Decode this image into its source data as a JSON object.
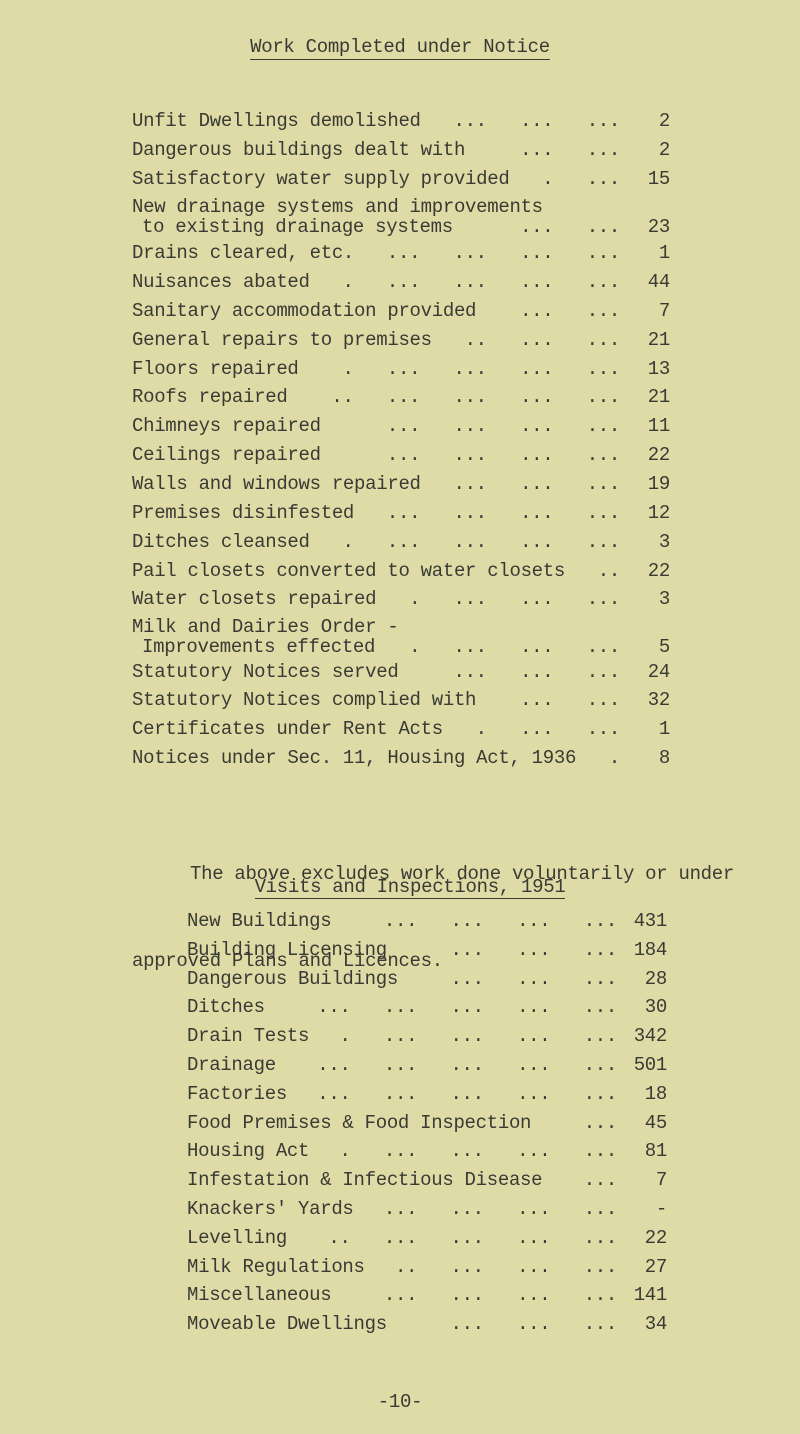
{
  "title": "Work Completed under Notice",
  "work_items": [
    {
      "label": "Unfit Dwellings demolished",
      "dots": "...   ...   ...",
      "value": "2"
    },
    {
      "label": "Dangerous buildings dealt with",
      "dots": "...   ...",
      "value": "2"
    },
    {
      "label": "Satisfactory water supply provided",
      "dots": ".   ...",
      "value": "15"
    },
    {
      "label": "New drainage systems and improvements",
      "label2": "to existing drainage systems",
      "dots": "...   ...",
      "value": "23"
    },
    {
      "label": "Drains cleared, etc.",
      "dots": "...   ...   ...   ...",
      "value": "1"
    },
    {
      "label": "Nuisances abated",
      "dots": ".   ...   ...   ...   ...",
      "value": "44"
    },
    {
      "label": "Sanitary accommodation provided",
      "dots": "...   ...",
      "value": "7"
    },
    {
      "label": "General repairs to premises",
      "dots": "..   ...   ...",
      "value": "21"
    },
    {
      "label": "Floors repaired",
      "dots": ".   ...   ...   ...   ...",
      "value": "13"
    },
    {
      "label": "Roofs repaired",
      "dots": "..   ...   ...   ...   ...",
      "value": "21"
    },
    {
      "label": "Chimneys repaired",
      "dots": "...   ...   ...   ...",
      "value": "11"
    },
    {
      "label": "Ceilings repaired",
      "dots": "...   ...   ...   ...",
      "value": "22"
    },
    {
      "label": "Walls and windows repaired",
      "dots": "...   ...   ...",
      "value": "19"
    },
    {
      "label": "Premises disinfested",
      "dots": "...   ...   ...   ...",
      "value": "12"
    },
    {
      "label": "Ditches cleansed",
      "dots": ".   ...   ...   ...   ...",
      "value": "3"
    },
    {
      "label": "Pail closets converted to water closets",
      "dots": "..",
      "value": "22"
    },
    {
      "label": "Water closets repaired",
      "dots": ".   ...   ...   ...",
      "value": "3"
    },
    {
      "label": "Milk and Dairies Order -",
      "label2": "Improvements effected",
      "dots": ".   ...   ...   ...",
      "value": "5"
    },
    {
      "label": "Statutory Notices served",
      "dots": "...   ...   ...",
      "value": "24"
    },
    {
      "label": "Statutory Notices complied with",
      "dots": "...   ...",
      "value": "32"
    },
    {
      "label": "Certificates under Rent Acts",
      "dots": ".   ...   ...",
      "value": "1"
    },
    {
      "label": "Notices under Sec. 11, Housing Act, 1936",
      "dots": ".",
      "value": "8"
    }
  ],
  "note_line1": "The above excludes work done voluntarily or under",
  "note_line2": "approved Plans and Licences.",
  "visits_title": "Visits and Inspections, 1951",
  "visits": [
    {
      "label": "New Buildings",
      "dots": "...   ...   ...   ...",
      "value": "431"
    },
    {
      "label": "Building Licensing",
      "dots": "...   ...   ...",
      "value": "184"
    },
    {
      "label": "Dangerous Buildings",
      "dots": "...   ...   ...",
      "value": "28"
    },
    {
      "label": "Ditches",
      "dots": "...   ...   ...   ...   ...",
      "value": "30"
    },
    {
      "label": "Drain Tests",
      "dots": ".   ...   ...   ...   ...",
      "value": "342"
    },
    {
      "label": "Drainage",
      "dots": "...   ...   ...   ...   ...",
      "value": "501"
    },
    {
      "label": "Factories",
      "dots": "...   ...   ...   ...   ...",
      "value": "18"
    },
    {
      "label": "Food Premises & Food Inspection",
      "dots": "...",
      "value": "45"
    },
    {
      "label": "Housing Act",
      "dots": ".   ...   ...   ...   ...",
      "value": "81"
    },
    {
      "label": "Infestation & Infectious Disease",
      "dots": "...",
      "value": "7"
    },
    {
      "label": "Knackers' Yards",
      "dots": "...   ...   ...   ...",
      "value": "-"
    },
    {
      "label": "Levelling",
      "dots": "..   ...   ...   ...   ...",
      "value": "22"
    },
    {
      "label": "Milk Regulations",
      "dots": "..   ...   ...   ...",
      "value": "27"
    },
    {
      "label": "Miscellaneous",
      "dots": "...   ...   ...   ...",
      "value": "141"
    },
    {
      "label": "Moveable Dwellings",
      "dots": "...   ...   ...",
      "value": "34"
    }
  ],
  "page_number": "-10-"
}
